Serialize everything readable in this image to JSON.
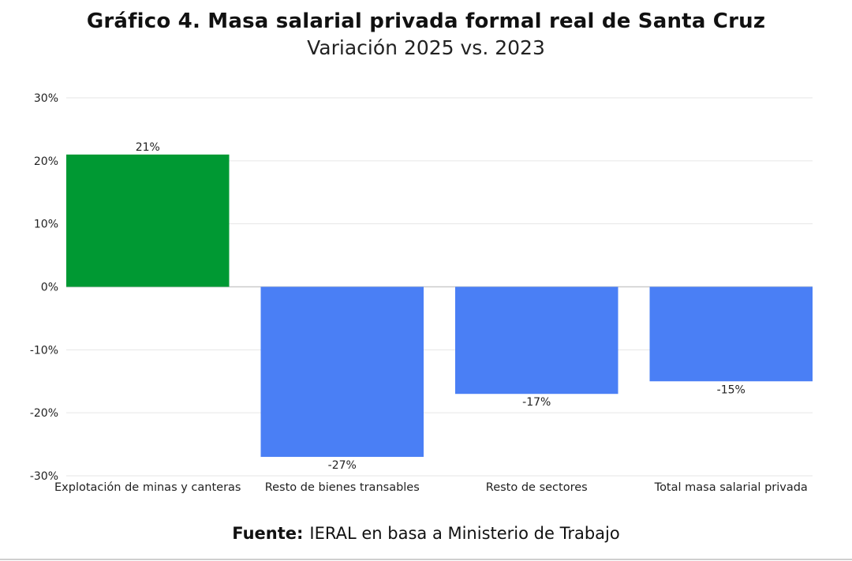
{
  "title": "Gráfico 4. Masa salarial privada formal real de Santa Cruz",
  "subtitle": "Variación 2025 vs. 2023",
  "source": {
    "label": "Fuente:",
    "text": "IERAL en basa a Ministerio de Trabajo"
  },
  "colors": {
    "positive": "#009933",
    "negative": "#4a7ff5",
    "grid": "#e6e6e6",
    "zero": "#cccccc"
  },
  "chart_data": {
    "type": "bar",
    "categories": [
      "Explotación de minas y canteras",
      "Resto de bienes transables",
      "Resto de sectores",
      "Total masa salarial privada"
    ],
    "values": [
      21,
      -27,
      -17,
      -15
    ],
    "data_labels": [
      "21%",
      "-27%",
      "-17%",
      "-15%"
    ],
    "yticks": [
      30,
      20,
      10,
      0,
      -10,
      -20,
      -30
    ],
    "ytick_labels": [
      "30%",
      "20%",
      "10%",
      "0%",
      "-10%",
      "-20%",
      "-30%"
    ],
    "ylim": [
      -30,
      30
    ],
    "grid": true,
    "legend": "none"
  }
}
